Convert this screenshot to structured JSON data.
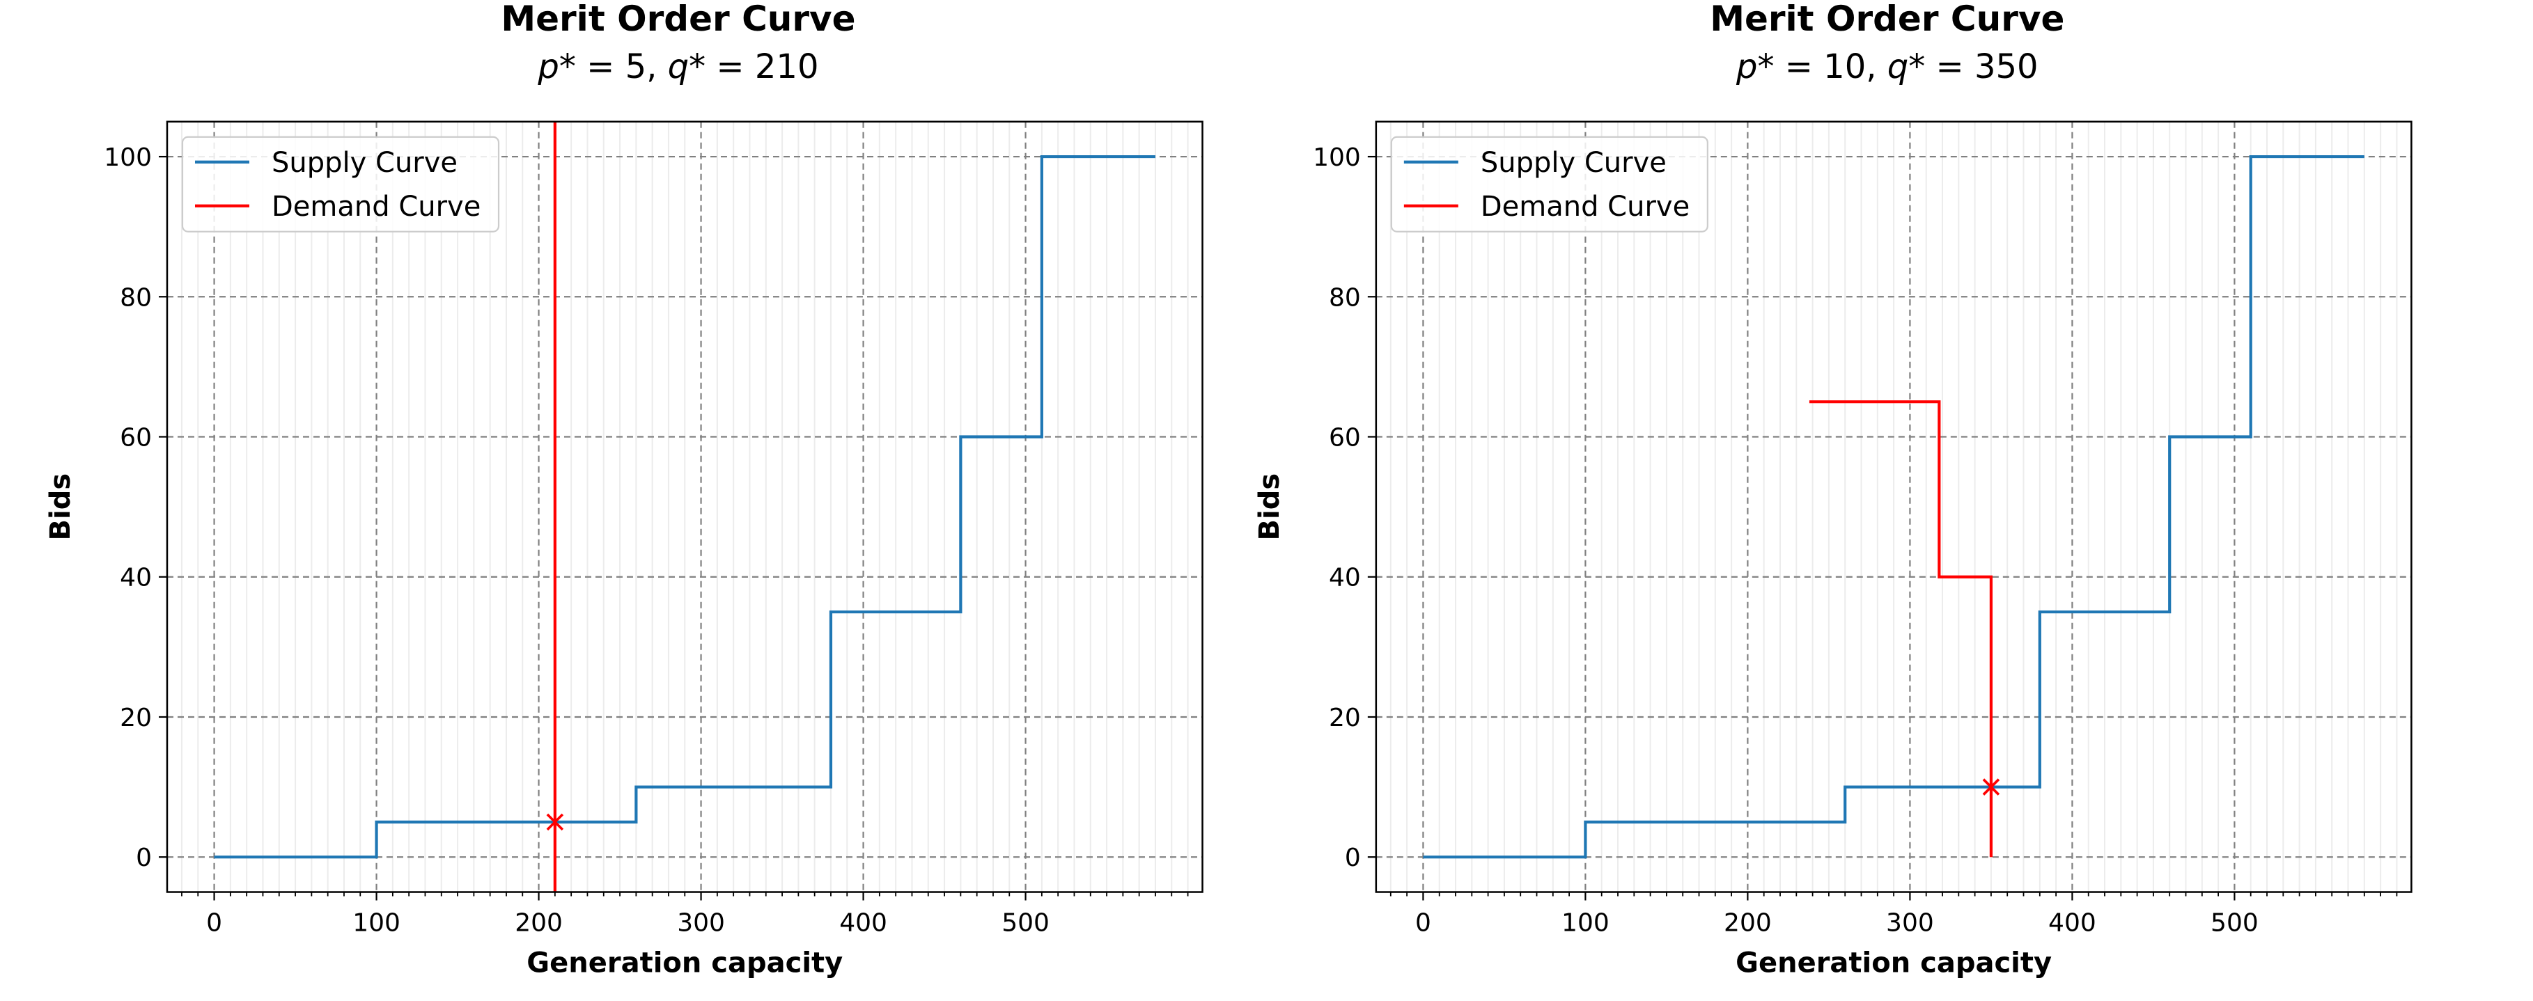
{
  "chart_data": [
    {
      "type": "line",
      "title": "Merit Order Curve",
      "subtitle_parts": [
        "p",
        "* = 5, ",
        "q",
        "* = 210"
      ],
      "xlabel": "Generation capacity",
      "ylabel": "Bids",
      "xlim": [
        -29,
        609
      ],
      "ylim": [
        -5,
        105
      ],
      "xticks": [
        0,
        100,
        200,
        300,
        400,
        500
      ],
      "yticks": [
        0,
        20,
        40,
        60,
        80,
        100
      ],
      "x_minor_step": 10,
      "grid": true,
      "legend_position": "upper-left",
      "series": [
        {
          "name": "Supply Curve",
          "color": "#1f77b4",
          "step": true,
          "points": [
            [
              0,
              0
            ],
            [
              100,
              0
            ],
            [
              100,
              5
            ],
            [
              260,
              5
            ],
            [
              260,
              10
            ],
            [
              380,
              10
            ],
            [
              380,
              35
            ],
            [
              460,
              35
            ],
            [
              460,
              60
            ],
            [
              510,
              60
            ],
            [
              510,
              100
            ],
            [
              580,
              100
            ]
          ]
        },
        {
          "name": "Demand Curve",
          "color": "#ff0000",
          "step": true,
          "points": [
            [
              210,
              -5
            ],
            [
              210,
              105
            ]
          ]
        }
      ],
      "equilibrium": {
        "x": 210,
        "y": 5,
        "marker": "x",
        "color": "#ff0000"
      }
    },
    {
      "type": "line",
      "title": "Merit Order Curve",
      "subtitle_parts": [
        "p",
        "* = 10, ",
        "q",
        "* = 350"
      ],
      "xlabel": "Generation capacity",
      "ylabel": "Bids",
      "xlim": [
        -29,
        609
      ],
      "ylim": [
        -5,
        105
      ],
      "xticks": [
        0,
        100,
        200,
        300,
        400,
        500
      ],
      "yticks": [
        0,
        20,
        40,
        60,
        80,
        100
      ],
      "x_minor_step": 10,
      "grid": true,
      "legend_position": "upper-left",
      "series": [
        {
          "name": "Supply Curve",
          "color": "#1f77b4",
          "step": true,
          "points": [
            [
              0,
              0
            ],
            [
              100,
              0
            ],
            [
              100,
              5
            ],
            [
              260,
              5
            ],
            [
              260,
              10
            ],
            [
              380,
              10
            ],
            [
              380,
              35
            ],
            [
              460,
              35
            ],
            [
              460,
              60
            ],
            [
              510,
              60
            ],
            [
              510,
              100
            ],
            [
              580,
              100
            ]
          ]
        },
        {
          "name": "Demand Curve",
          "color": "#ff0000",
          "step": true,
          "points": [
            [
              238,
              65
            ],
            [
              318,
              65
            ],
            [
              318,
              40
            ],
            [
              350,
              40
            ],
            [
              350,
              0
            ]
          ]
        }
      ],
      "equilibrium": {
        "x": 350,
        "y": 10,
        "marker": "x",
        "color": "#ff0000"
      }
    }
  ]
}
